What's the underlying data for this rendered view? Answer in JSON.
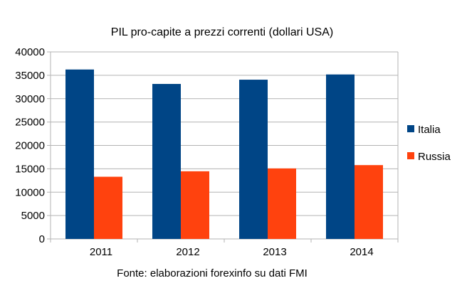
{
  "chart_data": {
    "type": "bar",
    "title": "PIL pro-capite a prezzi correnti (dollari USA)",
    "xlabel": "Fonte: elaborazioni forexinfo su dati FMI",
    "ylabel": "",
    "categories": [
      "2011",
      "2012",
      "2013",
      "2014"
    ],
    "series": [
      {
        "name": "Italia",
        "color": "#004586",
        "values": [
          36240,
          33150,
          34060,
          35180
        ]
      },
      {
        "name": "Russia",
        "color": "#ff420e",
        "values": [
          13300,
          14470,
          15080,
          15790
        ]
      }
    ],
    "ylim": [
      0,
      40000
    ],
    "yticks": [
      "0",
      "5000",
      "10000",
      "15000",
      "20000",
      "25000",
      "30000",
      "35000",
      "40000"
    ],
    "grid": true,
    "legend": "right"
  }
}
